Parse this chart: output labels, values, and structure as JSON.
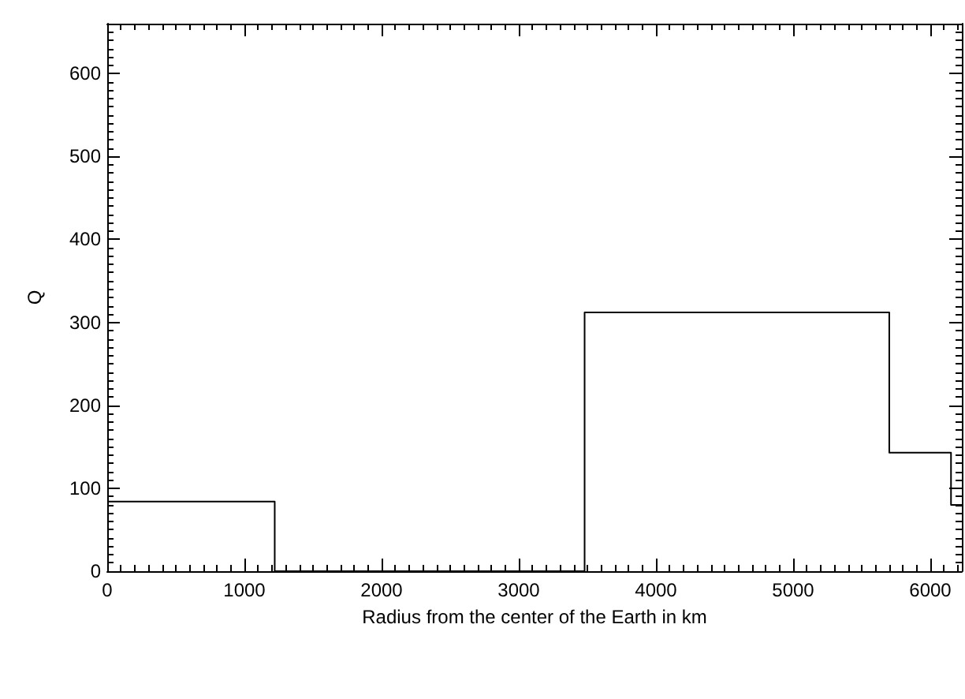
{
  "chart_data": {
    "type": "step",
    "xlabel": "Radius from the center of the Earth in km",
    "ylabel": "Q",
    "x": [
      0,
      1221,
      3480,
      5701,
      6151,
      6230
    ],
    "values": [
      84,
      0,
      312,
      143,
      80,
      80
    ],
    "color": "#000000",
    "xlim": [
      0,
      6230
    ],
    "xticks": [
      0,
      1000,
      2000,
      3000,
      4000,
      5000,
      6000
    ],
    "ylim": [
      0,
      660
    ],
    "yticks": [
      0,
      100,
      200,
      300,
      400,
      500,
      600
    ],
    "grid": false,
    "marker": "none",
    "line_style": "solid"
  }
}
